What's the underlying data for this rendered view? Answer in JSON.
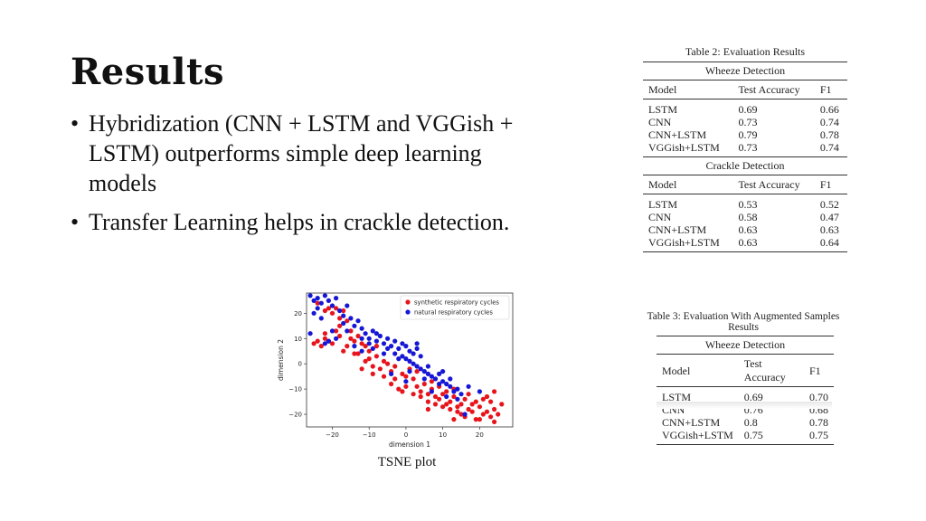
{
  "slide": {
    "title": "Results",
    "bullets": [
      "Hybridization (CNN + LSTM and VGGish + LSTM) outperforms simple deep learning models",
      "Transfer Learning helps in crackle detection."
    ],
    "bullet_symbol": "•"
  },
  "table2": {
    "caption": "Table 2: Evaluation Results",
    "columns": [
      "Model",
      "Test Accuracy",
      "F1"
    ],
    "sections": [
      {
        "group": "Wheeze Detection",
        "rows": [
          [
            "LSTM",
            "0.69",
            "0.66"
          ],
          [
            "CNN",
            "0.73",
            "0.74"
          ],
          [
            "CNN+LSTM",
            "0.79",
            "0.78"
          ],
          [
            "VGGish+LSTM",
            "0.73",
            "0.74"
          ]
        ]
      },
      {
        "group": "Crackle Detection",
        "rows": [
          [
            "LSTM",
            "0.53",
            "0.52"
          ],
          [
            "CNN",
            "0.58",
            "0.47"
          ],
          [
            "CNN+LSTM",
            "0.63",
            "0.63"
          ],
          [
            "VGGish+LSTM",
            "0.63",
            "0.64"
          ]
        ]
      }
    ]
  },
  "table3": {
    "caption": "Table 3: Evaluation With Augmented Samples Results",
    "columns": [
      "Model",
      "Test Accuracy",
      "F1"
    ],
    "sections": [
      {
        "group": "Wheeze Detection",
        "rows": [
          [
            "LSTM",
            "0.69",
            "0.70"
          ],
          [
            "CNN",
            "0.76",
            "0.68"
          ],
          [
            "CNN+LSTM",
            "0.8",
            "0.78"
          ],
          [
            "VGGish+LSTM",
            "0.75",
            "0.75"
          ]
        ]
      }
    ]
  },
  "tsne_caption": "TSNE plot",
  "chart_data": {
    "type": "scatter",
    "xlabel": "dimension 1",
    "ylabel": "dimension 2",
    "xlim": [
      -27,
      29
    ],
    "ylim": [
      -25,
      28
    ],
    "xticks": [
      -20,
      -10,
      0,
      10,
      20
    ],
    "yticks": [
      20,
      10,
      0,
      -10,
      -20
    ],
    "xtick_labels": [
      "−20",
      "−10",
      "0",
      "10",
      "20"
    ],
    "ytick_labels": [
      "20",
      "10",
      "0",
      "−10",
      "−20"
    ],
    "legend_position": "top-right",
    "grid": false,
    "series": [
      {
        "name": "synthetic respiratory cycles",
        "color": "#e8141c",
        "points": [
          [
            -25,
            8
          ],
          [
            -24,
            9
          ],
          [
            -23,
            7
          ],
          [
            -22,
            10
          ],
          [
            -21,
            9
          ],
          [
            -19,
            13
          ],
          [
            -18,
            15
          ],
          [
            -20,
            20
          ],
          [
            -21,
            22
          ],
          [
            -19,
            22
          ],
          [
            -17,
            21
          ],
          [
            -16,
            17
          ],
          [
            -15,
            10
          ],
          [
            -14,
            9
          ],
          [
            -12,
            8
          ],
          [
            -11,
            7
          ],
          [
            -13,
            4
          ],
          [
            -11,
            1
          ],
          [
            -10,
            2
          ],
          [
            -9,
            -1
          ],
          [
            -8,
            3
          ],
          [
            -6,
            1
          ],
          [
            -5,
            0
          ],
          [
            -7,
            -2
          ],
          [
            -4,
            -3
          ],
          [
            -3,
            -6
          ],
          [
            -1,
            -4
          ],
          [
            0,
            -5
          ],
          [
            1,
            -2
          ],
          [
            2,
            -6
          ],
          [
            3,
            -9
          ],
          [
            4,
            -11
          ],
          [
            5,
            -8
          ],
          [
            6,
            -12
          ],
          [
            7,
            -10
          ],
          [
            8,
            -13
          ],
          [
            9,
            -14
          ],
          [
            10,
            -12
          ],
          [
            11,
            -16
          ],
          [
            12,
            -15
          ],
          [
            13,
            -13
          ],
          [
            14,
            -17
          ],
          [
            15,
            -16
          ],
          [
            16,
            -14
          ],
          [
            17,
            -18
          ],
          [
            18,
            -19
          ],
          [
            19,
            -15
          ],
          [
            20,
            -17
          ],
          [
            21,
            -14
          ],
          [
            22,
            -13
          ],
          [
            23,
            -15
          ],
          [
            24,
            -18
          ],
          [
            25,
            -20
          ],
          [
            23,
            -21
          ],
          [
            21,
            -20
          ],
          [
            19,
            -22
          ],
          [
            16,
            -21
          ],
          [
            14,
            -19
          ],
          [
            12,
            -18
          ],
          [
            10,
            -17
          ],
          [
            8,
            -16
          ],
          [
            6,
            -15
          ],
          [
            4,
            -13
          ],
          [
            2,
            -12
          ],
          [
            0,
            -9
          ],
          [
            -2,
            -10
          ],
          [
            -4,
            -8
          ],
          [
            -6,
            -5
          ],
          [
            -9,
            -4
          ],
          [
            -12,
            -2
          ],
          [
            -14,
            4
          ],
          [
            -16,
            7
          ],
          [
            -18,
            11
          ],
          [
            -20,
            8
          ],
          [
            -22,
            12
          ],
          [
            -17,
            5
          ],
          [
            -13,
            11
          ],
          [
            -8,
            7
          ],
          [
            -3,
            -1
          ],
          [
            3,
            -3
          ],
          [
            9,
            -9
          ],
          [
            13,
            -10
          ],
          [
            17,
            -12
          ],
          [
            24,
            -11
          ],
          [
            26,
            -16
          ],
          [
            20,
            -22
          ],
          [
            15,
            -20
          ],
          [
            11,
            -11
          ],
          [
            7,
            -7
          ],
          [
            -1,
            -11
          ],
          [
            6,
            -18
          ],
          [
            13,
            -22
          ],
          [
            18,
            -16
          ],
          [
            22,
            -19
          ],
          [
            24,
            -23
          ],
          [
            -24,
            24
          ],
          [
            -22,
            21
          ],
          [
            -18,
            18
          ],
          [
            -15,
            13
          ],
          [
            -10,
            5
          ]
        ]
      },
      {
        "name": "natural respiratory cycles",
        "color": "#1616d6",
        "points": [
          [
            -26,
            27
          ],
          [
            -25,
            25
          ],
          [
            -24,
            26
          ],
          [
            -23,
            24
          ],
          [
            -22,
            27
          ],
          [
            -21,
            25
          ],
          [
            -20,
            23
          ],
          [
            -24,
            22
          ],
          [
            -19,
            26
          ],
          [
            -18,
            21
          ],
          [
            -17,
            19
          ],
          [
            -16,
            23
          ],
          [
            -15,
            18
          ],
          [
            -14,
            15
          ],
          [
            -13,
            17
          ],
          [
            -12,
            14
          ],
          [
            -11,
            12
          ],
          [
            -10,
            10
          ],
          [
            -9,
            13
          ],
          [
            -8,
            9
          ],
          [
            -7,
            11
          ],
          [
            -6,
            8
          ],
          [
            -5,
            10
          ],
          [
            -4,
            7
          ],
          [
            -3,
            9
          ],
          [
            -2,
            6
          ],
          [
            -1,
            8
          ],
          [
            0,
            7
          ],
          [
            1,
            5
          ],
          [
            2,
            4
          ],
          [
            3,
            6
          ],
          [
            -1,
            3
          ],
          [
            0,
            2
          ],
          [
            1,
            1
          ],
          [
            2,
            0
          ],
          [
            3,
            -1
          ],
          [
            4,
            -2
          ],
          [
            5,
            -3
          ],
          [
            6,
            -4
          ],
          [
            7,
            -5
          ],
          [
            8,
            -6
          ],
          [
            9,
            -4
          ],
          [
            10,
            -7
          ],
          [
            11,
            -8
          ],
          [
            12,
            -9
          ],
          [
            13,
            -11
          ],
          [
            14,
            -10
          ],
          [
            15,
            -12
          ],
          [
            12,
            -6
          ],
          [
            9,
            -8
          ],
          [
            6,
            -1
          ],
          [
            4,
            3
          ],
          [
            -3,
            4
          ],
          [
            -6,
            4
          ],
          [
            -9,
            6
          ],
          [
            -12,
            10
          ],
          [
            -16,
            13
          ],
          [
            -19,
            10
          ],
          [
            -22,
            8
          ],
          [
            -20,
            13
          ],
          [
            -14,
            7
          ],
          [
            -10,
            8
          ],
          [
            -5,
            6
          ],
          [
            -2,
            2
          ],
          [
            1,
            -3
          ],
          [
            5,
            -6
          ],
          [
            10,
            -3
          ],
          [
            14,
            -14
          ],
          [
            17,
            -9
          ],
          [
            -23,
            18
          ],
          [
            -25,
            20
          ],
          [
            -17,
            16
          ],
          [
            -8,
            12
          ],
          [
            3,
            8
          ],
          [
            -4,
            -4
          ],
          [
            0,
            -7
          ],
          [
            7,
            -11
          ],
          [
            11,
            -13
          ],
          [
            16,
            -20
          ],
          [
            20,
            -11
          ],
          [
            -26,
            12
          ],
          [
            -21,
            9
          ],
          [
            -12,
            5
          ]
        ]
      }
    ]
  }
}
